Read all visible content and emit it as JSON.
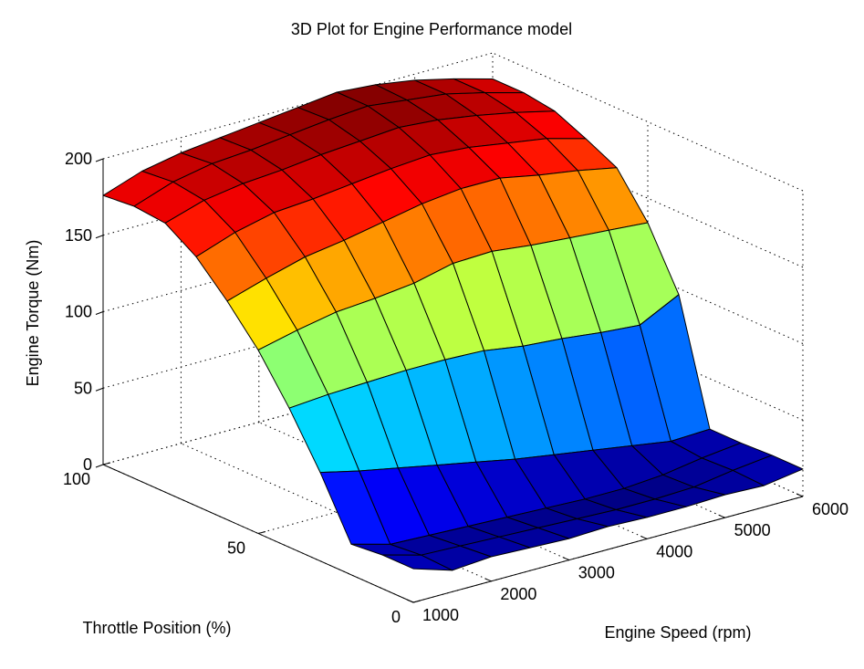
{
  "chart_data": {
    "type": "surface",
    "title": "3D Plot for Engine Performance model",
    "xlabel": "Engine Speed (rpm)",
    "ylabel": "Throttle Position (%)",
    "zlabel": "Engine Torque (Nm)",
    "x_ticks": [
      "1000",
      "2000",
      "3000",
      "4000",
      "5000",
      "6000"
    ],
    "y_ticks": [
      "0",
      "50",
      "100"
    ],
    "z_ticks": [
      "0",
      "50",
      "100",
      "150",
      "200"
    ],
    "xlim": [
      1000,
      6000
    ],
    "ylim": [
      0,
      100
    ],
    "zlim": [
      0,
      200
    ],
    "grid": true,
    "colormap": "jet",
    "x": [
      1000,
      1500,
      2000,
      2500,
      3000,
      3500,
      4000,
      4500,
      5000,
      5500,
      6000
    ],
    "y": [
      0,
      10,
      20,
      30,
      40,
      50,
      60,
      70,
      80,
      90,
      100
    ],
    "z": [
      [
        22,
        14,
        16,
        15,
        14,
        15,
        14,
        14,
        15,
        14,
        18
      ],
      [
        22,
        15,
        14,
        13,
        12,
        11,
        10,
        10,
        11,
        15,
        18
      ],
      [
        20,
        13,
        12,
        11,
        10,
        9,
        8,
        8,
        10,
        14,
        17
      ],
      [
        58,
        52,
        47,
        42,
        37,
        32,
        28,
        24,
        20,
        16,
        17
      ],
      [
        91,
        93,
        94,
        95,
        95,
        94,
        90,
        88,
        85,
        83,
        96
      ],
      [
        120,
        126,
        131,
        133,
        136,
        142,
        143,
        140,
        138,
        136,
        134
      ],
      [
        143,
        151,
        158,
        162,
        167,
        172,
        175,
        175,
        170,
        166,
        161
      ],
      [
        163,
        172,
        178,
        180,
        183,
        186,
        188,
        186,
        182,
        178,
        171
      ],
      [
        176,
        184,
        188,
        190,
        193,
        195,
        197,
        195,
        191,
        186,
        180
      ],
      [
        178,
        187,
        192,
        194,
        197,
        200,
        202,
        199,
        196,
        190,
        183
      ],
      [
        176,
        185,
        190,
        193,
        196,
        199,
        202,
        200,
        196,
        190,
        183
      ]
    ]
  }
}
